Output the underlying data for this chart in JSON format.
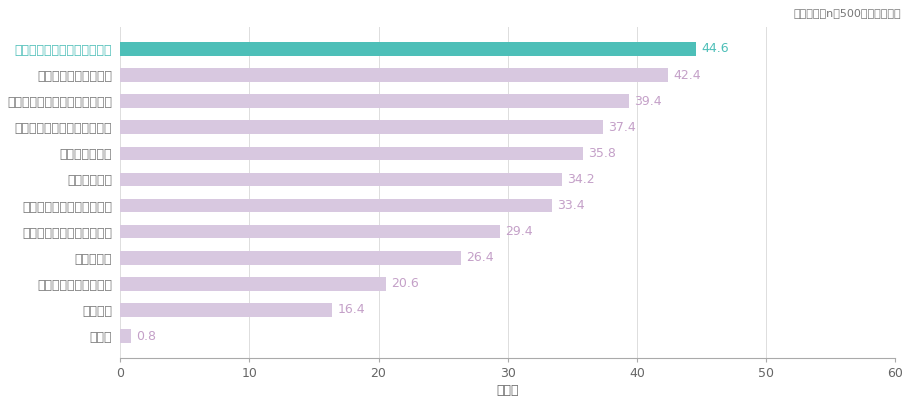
{
  "categories": [
    "部下とのコミュニケーション",
    "チーム内での情報共有",
    "部下同士のコミュニケーション",
    "部下の日々の業務の進捗管理",
    "部下の勤務管理",
    "一体感の醸成",
    "部下の時間の使い方の管理",
    "メンバー間の公平感の確立",
    "部下の評価",
    "部下の健康状態の管理",
    "特にない",
    "その他"
  ],
  "values": [
    44.6,
    42.4,
    39.4,
    37.4,
    35.8,
    34.2,
    33.4,
    29.4,
    26.4,
    20.6,
    16.4,
    0.8
  ],
  "bar_colors": [
    "#4DBFB8",
    "#D8C8E0",
    "#D8C8E0",
    "#D8C8E0",
    "#D8C8E0",
    "#D8C8E0",
    "#D8C8E0",
    "#D8C8E0",
    "#D8C8E0",
    "#D8C8E0",
    "#D8C8E0",
    "#D8C8E0"
  ],
  "label_colors": [
    "#4DBFB8",
    "#C4A0C8",
    "#C4A0C8",
    "#C4A0C8",
    "#C4A0C8",
    "#C4A0C8",
    "#C4A0C8",
    "#C4A0C8",
    "#C4A0C8",
    "#C4A0C8",
    "#C4A0C8",
    "#C4A0C8"
  ],
  "y_label_colors": [
    "#4DBFB8",
    "#777777",
    "#777777",
    "#777777",
    "#777777",
    "#777777",
    "#777777",
    "#777777",
    "#777777",
    "#777777",
    "#777777",
    "#777777"
  ],
  "top_note": "単位：％（n＝500，複数回答）",
  "xlabel": "（％）",
  "xlim": [
    0,
    60
  ],
  "xticks": [
    0,
    10,
    20,
    30,
    40,
    50,
    60
  ],
  "background_color": "#ffffff",
  "bar_height": 0.52
}
